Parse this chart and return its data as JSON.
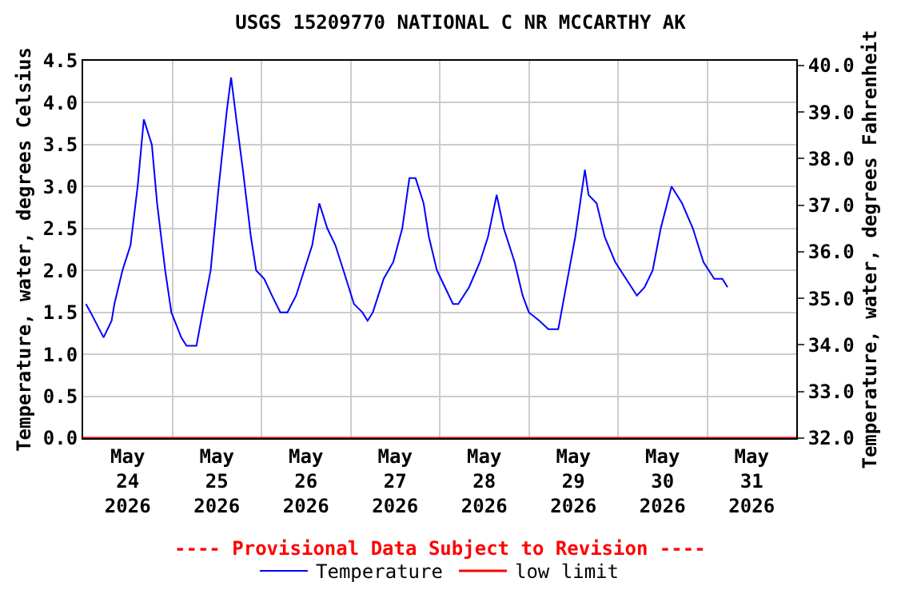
{
  "chart_data": {
    "type": "line",
    "title": "USGS 15209770 NATIONAL C NR MCCARTHY AK",
    "ylabel": "Temperature, water, degrees Celsius",
    "y2label": "Temperature, water, degrees Fahrenheit",
    "annotations": [
      "---- Provisional Data Subject to Revision ----"
    ],
    "x": [
      "2026-05-24T00:45",
      "2026-05-24T02:00",
      "2026-05-24T05:30",
      "2026-05-24T07:40",
      "2026-05-24T08:25",
      "2026-05-24T10:35",
      "2026-05-24T12:45",
      "2026-05-24T14:40",
      "2026-05-24T16:20",
      "2026-05-24T18:30",
      "2026-05-24T19:55",
      "2026-05-24T22:05",
      "2026-05-24T23:45",
      "2026-05-25T02:25",
      "2026-05-25T03:50",
      "2026-05-25T06:30",
      "2026-05-25T08:10",
      "2026-05-25T10:20",
      "2026-05-25T12:30",
      "2026-05-25T14:40",
      "2026-05-25T15:50",
      "2026-05-25T17:15",
      "2026-05-25T19:00",
      "2026-05-25T21:10",
      "2026-05-25T22:35",
      "2026-05-26T00:45",
      "2026-05-26T02:50",
      "2026-05-26T05:05",
      "2026-05-26T07:00",
      "2026-05-26T09:20",
      "2026-05-26T11:30",
      "2026-05-26T13:40",
      "2026-05-26T15:35",
      "2026-05-26T17:45",
      "2026-05-26T19:55",
      "2026-05-26T22:05",
      "2026-05-27T00:55",
      "2026-05-27T03:10",
      "2026-05-27T04:35",
      "2026-05-27T06:00",
      "2026-05-27T08:55",
      "2026-05-27T11:30",
      "2026-05-27T13:55",
      "2026-05-27T15:50",
      "2026-05-27T17:30",
      "2026-05-27T19:40",
      "2026-05-27T21:05",
      "2026-05-27T23:15",
      "2026-05-28T01:25",
      "2026-05-28T03:35",
      "2026-05-28T05:00",
      "2026-05-28T07:55",
      "2026-05-28T10:50",
      "2026-05-28T13:00",
      "2026-05-28T15:20",
      "2026-05-28T17:15",
      "2026-05-28T20:10",
      "2026-05-28T22:20",
      "2026-05-29T00:00",
      "2026-05-29T02:50",
      "2026-05-29T05:15",
      "2026-05-29T07:55",
      "2026-05-29T09:35",
      "2026-05-29T12:30",
      "2026-05-29T15:05",
      "2026-05-29T16:05",
      "2026-05-29T18:15",
      "2026-05-29T20:25",
      "2026-05-29T23:15",
      "2026-05-30T02:10",
      "2026-05-30T05:05",
      "2026-05-30T07:10",
      "2026-05-30T09:20",
      "2026-05-30T11:30",
      "2026-05-30T14:25",
      "2026-05-30T15:50",
      "2026-05-30T17:15",
      "2026-05-30T20:10",
      "2026-05-30T23:00",
      "2026-05-31T01:55",
      "2026-05-31T04:05",
      "2026-05-31T05:30"
    ],
    "series": [
      {
        "name": "Temperature",
        "color": "#0000ff",
        "values": [
          1.6,
          1.5,
          1.2,
          1.4,
          1.6,
          2.0,
          2.3,
          3.0,
          3.8,
          3.5,
          2.8,
          2.0,
          1.5,
          1.2,
          1.1,
          1.1,
          1.5,
          2.0,
          3.0,
          3.9,
          4.3,
          3.8,
          3.2,
          2.4,
          2.0,
          1.9,
          1.7,
          1.5,
          1.5,
          1.7,
          2.0,
          2.3,
          2.8,
          2.5,
          2.3,
          2.0,
          1.6,
          1.5,
          1.4,
          1.5,
          1.9,
          2.1,
          2.5,
          3.1,
          3.1,
          2.8,
          2.4,
          2.0,
          1.8,
          1.6,
          1.6,
          1.8,
          2.1,
          2.4,
          2.9,
          2.5,
          2.1,
          1.7,
          1.5,
          1.4,
          1.3,
          1.3,
          1.7,
          2.4,
          3.2,
          2.9,
          2.8,
          2.4,
          2.1,
          1.9,
          1.7,
          1.8,
          2.0,
          2.5,
          3.0,
          2.9,
          2.8,
          2.5,
          2.1,
          1.9,
          1.9,
          1.8
        ]
      }
    ],
    "ref_lines": [
      {
        "axis": "y",
        "value": 0,
        "label": "low limit",
        "color": "#ff0000"
      }
    ],
    "xlim": [
      "2026-05-24T00:00",
      "2026-06-01T00:00"
    ],
    "xticks": [
      {
        "value": "2026-05-24T12:00",
        "label": "May\n24\n2026"
      },
      {
        "value": "2026-05-25T00:00",
        "label": null
      },
      {
        "value": "2026-05-25T12:00",
        "label": "May\n25\n2026"
      },
      {
        "value": "2026-05-26T00:00",
        "label": null
      },
      {
        "value": "2026-05-26T12:00",
        "label": "May\n26\n2026"
      },
      {
        "value": "2026-05-27T00:00",
        "label": null
      },
      {
        "value": "2026-05-27T12:00",
        "label": "May\n27\n2026"
      },
      {
        "value": "2026-05-28T00:00",
        "label": null
      },
      {
        "value": "2026-05-28T12:00",
        "label": "May\n28\n2026"
      },
      {
        "value": "2026-05-29T00:00",
        "label": null
      },
      {
        "value": "2026-05-29T12:00",
        "label": "May\n29\n2026"
      },
      {
        "value": "2026-05-30T00:00",
        "label": null
      },
      {
        "value": "2026-05-30T12:00",
        "label": "May\n30\n2026"
      },
      {
        "value": "2026-05-31T00:00",
        "label": null
      },
      {
        "value": "2026-05-31T12:00",
        "label": "May\n31\n2026"
      }
    ],
    "ylim": [
      0,
      4.5
    ],
    "yticks": [
      {
        "value": 0,
        "label": "0.0"
      },
      {
        "value": 0.5,
        "label": "0.5"
      },
      {
        "value": 1,
        "label": "1.0"
      },
      {
        "value": 1.5,
        "label": "1.5"
      },
      {
        "value": 2,
        "label": "2.0"
      },
      {
        "value": 2.5,
        "label": "2.5"
      },
      {
        "value": 3,
        "label": "3.0"
      },
      {
        "value": 3.5,
        "label": "3.5"
      },
      {
        "value": 4,
        "label": "4.0"
      },
      {
        "value": 4.5,
        "label": "4.5"
      }
    ],
    "y2lim": [
      32,
      40.1
    ],
    "y2ticks": [
      {
        "value": 32,
        "label": "32.0"
      },
      {
        "value": 33,
        "label": "33.0"
      },
      {
        "value": 34,
        "label": "34.0"
      },
      {
        "value": 35,
        "label": "35.0"
      },
      {
        "value": 36,
        "label": "36.0"
      },
      {
        "value": 37,
        "label": "37.0"
      },
      {
        "value": 38,
        "label": "38.0"
      },
      {
        "value": 39,
        "label": "39.0"
      },
      {
        "value": 40,
        "label": "40.0"
      }
    ],
    "grid": true,
    "legend": "bottom",
    "marker": "none",
    "line_style": "solid"
  }
}
